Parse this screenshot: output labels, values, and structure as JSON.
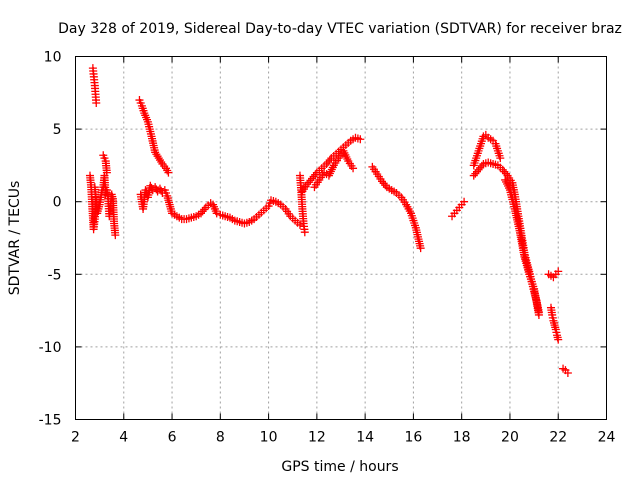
{
  "chart_data": {
    "type": "scatter",
    "title": "Day 328 of 2019, Sidereal Day-to-day VTEC variation (SDTVAR) for receiver braz",
    "xlabel": "GPS time / hours",
    "ylabel": "SDTVAR / TECUs",
    "xlim": [
      2,
      24
    ],
    "ylim": [
      -15,
      10
    ],
    "xticks": [
      2,
      4,
      6,
      8,
      10,
      12,
      14,
      16,
      18,
      20,
      22,
      24
    ],
    "yticks": [
      10,
      5,
      0,
      -5,
      -10,
      -15
    ],
    "grid": true,
    "marker": "plus",
    "color": "#ff0000",
    "series": [
      {
        "name": "seg-a1",
        "x": [
          2.6,
          2.65,
          2.7,
          2.75,
          2.8,
          2.85
        ],
        "y": [
          1.8,
          1.0,
          -0.5,
          -1.9,
          -1.2,
          0.3
        ]
      },
      {
        "name": "seg-a2",
        "x": [
          2.72,
          2.76,
          2.8,
          2.83,
          2.86
        ],
        "y": [
          9.2,
          8.6,
          8.0,
          7.4,
          6.8
        ]
      },
      {
        "name": "seg-a3",
        "x": [
          2.8,
          2.9,
          3.0,
          3.1
        ],
        "y": [
          1.0,
          -0.8,
          -0.2,
          0.8
        ]
      },
      {
        "name": "seg-b1",
        "x": [
          3.15,
          3.2,
          3.25,
          3.3
        ],
        "y": [
          3.2,
          3.0,
          2.8,
          2.0
        ]
      },
      {
        "name": "seg-b2",
        "x": [
          3.15,
          3.2,
          3.25,
          3.3,
          3.35,
          3.4,
          3.45,
          3.5,
          3.55,
          3.6,
          3.65
        ],
        "y": [
          1.0,
          1.8,
          0.5,
          0.8,
          0.2,
          -1.0,
          -0.3,
          0.5,
          0.2,
          -1.5,
          -2.3
        ]
      },
      {
        "name": "seg-c1",
        "x": [
          4.65,
          4.75,
          4.85,
          5.0,
          5.15,
          5.3,
          5.45,
          5.6,
          5.75,
          5.85
        ],
        "y": [
          7.0,
          6.6,
          6.1,
          5.5,
          4.5,
          3.4,
          3.0,
          2.6,
          2.3,
          2.0
        ]
      },
      {
        "name": "seg-c2",
        "x": [
          4.7,
          4.8,
          4.9,
          5.0,
          5.1,
          5.2,
          5.3,
          5.4,
          5.5,
          5.6,
          5.7,
          5.8,
          5.9,
          6.0,
          6.1
        ],
        "y": [
          0.5,
          -0.5,
          0.8,
          0.3,
          1.1,
          0.8,
          1.0,
          0.7,
          0.9,
          0.6,
          0.8,
          0.4,
          -0.2,
          -0.8,
          -0.9
        ]
      },
      {
        "name": "seg-d",
        "x": [
          6.2,
          6.4,
          6.6,
          6.8,
          7.0,
          7.2,
          7.4,
          7.6,
          7.7,
          7.85,
          8.0,
          8.2,
          8.4,
          8.6,
          8.8,
          9.0,
          9.2,
          9.4,
          9.6,
          9.8,
          10.0,
          10.1,
          10.3,
          10.5,
          10.7,
          10.9,
          11.1,
          11.3
        ],
        "y": [
          -1.0,
          -1.2,
          -1.2,
          -1.1,
          -1.0,
          -0.8,
          -0.4,
          -0.1,
          -0.2,
          -0.8,
          -0.9,
          -1.0,
          -1.1,
          -1.3,
          -1.4,
          -1.5,
          -1.4,
          -1.2,
          -0.9,
          -0.6,
          -0.3,
          0.1,
          0.0,
          -0.2,
          -0.5,
          -1.0,
          -1.3,
          -1.6
        ]
      },
      {
        "name": "seg-e1",
        "x": [
          11.3,
          11.35,
          11.4,
          11.45,
          11.5
        ],
        "y": [
          1.8,
          0.8,
          -0.5,
          -1.5,
          -2.1
        ]
      },
      {
        "name": "seg-e2",
        "x": [
          11.4,
          11.6,
          11.8,
          12.0,
          12.2,
          12.4,
          12.6,
          12.8,
          13.0,
          13.2,
          13.4,
          13.6,
          13.8
        ],
        "y": [
          0.7,
          1.2,
          1.6,
          2.0,
          2.3,
          2.6,
          3.0,
          3.3,
          3.6,
          3.9,
          4.2,
          4.4,
          4.3
        ]
      },
      {
        "name": "seg-e3",
        "x": [
          11.9,
          12.1,
          12.3,
          12.5,
          12.7,
          12.9,
          13.1,
          13.3,
          13.5
        ],
        "y": [
          1.0,
          1.5,
          2.0,
          1.8,
          2.5,
          3.0,
          3.5,
          2.8,
          2.3
        ]
      },
      {
        "name": "seg-f",
        "x": [
          14.3,
          14.5,
          14.7,
          14.9,
          15.1,
          15.3,
          15.5,
          15.7,
          15.9,
          16.1,
          16.3
        ],
        "y": [
          2.4,
          1.9,
          1.4,
          1.0,
          0.8,
          0.6,
          0.3,
          -0.2,
          -0.8,
          -1.8,
          -3.2
        ]
      },
      {
        "name": "seg-g",
        "x": [
          17.6,
          17.7,
          17.8,
          17.9,
          18.0,
          18.1
        ],
        "y": [
          -1.0,
          -0.8,
          -0.6,
          -0.4,
          -0.2,
          0.0
        ]
      },
      {
        "name": "seg-h1",
        "x": [
          18.5,
          18.6,
          18.7,
          18.8,
          18.9,
          19.0,
          19.1,
          19.2,
          19.3,
          19.4,
          19.5,
          19.6
        ],
        "y": [
          2.5,
          3.0,
          3.5,
          4.0,
          4.5,
          4.6,
          4.4,
          4.3,
          4.2,
          4.0,
          3.5,
          3.0
        ]
      },
      {
        "name": "seg-h2",
        "x": [
          18.5,
          18.7,
          18.9,
          19.1,
          19.3,
          19.5,
          19.7,
          19.9,
          20.1,
          20.2,
          20.3,
          20.4,
          20.5,
          20.6,
          20.7,
          20.8,
          20.9,
          21.0,
          21.1,
          21.2
        ],
        "y": [
          1.8,
          2.2,
          2.6,
          2.7,
          2.6,
          2.5,
          2.2,
          1.8,
          1.3,
          0.5,
          -0.5,
          -1.5,
          -2.5,
          -3.5,
          -4.2,
          -4.8,
          -5.5,
          -6.2,
          -6.8,
          -7.6
        ]
      },
      {
        "name": "seg-h3",
        "x": [
          19.8,
          20.0,
          20.2,
          20.4,
          20.6,
          20.8,
          21.0,
          21.2
        ],
        "y": [
          1.5,
          0.8,
          -0.5,
          -2.0,
          -3.8,
          -5.0,
          -6.0,
          -7.8
        ]
      },
      {
        "name": "seg-i",
        "x": [
          21.6,
          21.7,
          21.8,
          21.9,
          22.0
        ],
        "y": [
          -5.0,
          -5.1,
          -5.2,
          -5.0,
          -4.8
        ]
      },
      {
        "name": "seg-j",
        "x": [
          21.7,
          21.75,
          21.8,
          21.85,
          21.9,
          21.95,
          22.0
        ],
        "y": [
          -7.3,
          -7.8,
          -8.2,
          -8.5,
          -8.8,
          -9.2,
          -9.5
        ]
      },
      {
        "name": "seg-k",
        "x": [
          22.2,
          22.3,
          22.4
        ],
        "y": [
          -11.5,
          -11.6,
          -11.8
        ]
      }
    ]
  }
}
